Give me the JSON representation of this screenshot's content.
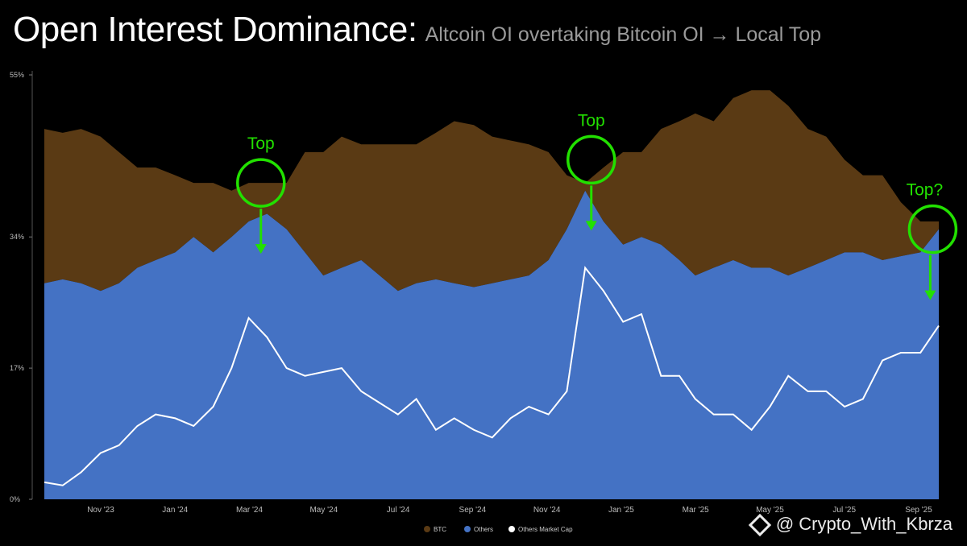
{
  "title": "Open Interest Dominance:",
  "subtitle": "Altcoin OI overtaking Bitcoin OI → Local Top",
  "watermark": "@ Crypto_With_Kbrza",
  "colors": {
    "btc": "#5a3a14",
    "others": "#4472c4",
    "others_mcap": "#ffffff",
    "annotation": "#22e000",
    "background": "#000000"
  },
  "chart_data": {
    "type": "area",
    "y_ticks": [
      "0%",
      "17%",
      "34%",
      "55%"
    ],
    "y_tick_values": [
      0,
      17,
      34,
      55
    ],
    "ylim": [
      0,
      55
    ],
    "x_ticks": [
      "Nov '23",
      "Jan '24",
      "Mar '24",
      "May '24",
      "Jul '24",
      "Sep '24",
      "Nov '24",
      "Jan '25",
      "Mar '25",
      "May '25",
      "Jul '25",
      "Sep '25"
    ],
    "legend": [
      "BTC",
      "Others",
      "Others Market Cap"
    ],
    "legend_position": "bottom-center",
    "grid": false,
    "annotations": [
      {
        "text": "Top",
        "x": "2024-03-15",
        "y": 41
      },
      {
        "text": "Top",
        "x": "2024-12-10",
        "y": 44
      },
      {
        "text": "Top?",
        "x": "2025-09-15",
        "y": 35
      }
    ],
    "series": [
      {
        "name": "Others",
        "x": [
          "2023-09-20",
          "2023-10-05",
          "2023-10-20",
          "2023-11-05",
          "2023-11-20",
          "2023-12-05",
          "2023-12-20",
          "2024-01-05",
          "2024-01-20",
          "2024-02-05",
          "2024-02-20",
          "2024-03-05",
          "2024-03-20",
          "2024-04-05",
          "2024-04-20",
          "2024-05-05",
          "2024-05-20",
          "2024-06-05",
          "2024-06-20",
          "2024-07-05",
          "2024-07-20",
          "2024-08-05",
          "2024-08-20",
          "2024-09-05",
          "2024-09-20",
          "2024-10-05",
          "2024-10-20",
          "2024-11-05",
          "2024-11-20",
          "2024-12-05",
          "2024-12-20",
          "2025-01-05",
          "2025-01-20",
          "2025-02-05",
          "2025-02-20",
          "2025-03-05",
          "2025-03-20",
          "2025-04-05",
          "2025-04-20",
          "2025-05-05",
          "2025-05-20",
          "2025-06-05",
          "2025-06-20",
          "2025-07-05",
          "2025-07-20",
          "2025-08-05",
          "2025-08-20",
          "2025-09-05",
          "2025-09-20"
        ],
        "values": [
          28,
          28.5,
          28,
          27,
          28,
          30,
          31,
          32,
          34,
          32,
          34,
          36,
          37,
          35,
          32,
          29,
          30,
          31,
          29,
          27,
          28,
          28.5,
          28,
          27.5,
          28,
          28.5,
          29,
          31,
          35,
          40,
          36,
          33,
          34,
          33,
          31,
          29,
          30,
          31,
          30,
          30,
          29,
          30,
          31,
          32,
          32,
          31,
          31.5,
          32,
          35
        ]
      },
      {
        "name": "BTC",
        "x": [
          "2023-09-20",
          "2023-10-05",
          "2023-10-20",
          "2023-11-05",
          "2023-11-20",
          "2023-12-05",
          "2023-12-20",
          "2024-01-05",
          "2024-01-20",
          "2024-02-05",
          "2024-02-20",
          "2024-03-05",
          "2024-03-20",
          "2024-04-05",
          "2024-04-20",
          "2024-05-05",
          "2024-05-20",
          "2024-06-05",
          "2024-06-20",
          "2024-07-05",
          "2024-07-20",
          "2024-08-05",
          "2024-08-20",
          "2024-09-05",
          "2024-09-20",
          "2024-10-05",
          "2024-10-20",
          "2024-11-05",
          "2024-11-20",
          "2024-12-05",
          "2024-12-20",
          "2025-01-05",
          "2025-01-20",
          "2025-02-05",
          "2025-02-20",
          "2025-03-05",
          "2025-03-20",
          "2025-04-05",
          "2025-04-20",
          "2025-05-05",
          "2025-05-20",
          "2025-06-05",
          "2025-06-20",
          "2025-07-05",
          "2025-07-20",
          "2025-08-05",
          "2025-08-20",
          "2025-09-05",
          "2025-09-20"
        ],
        "values": [
          20,
          19,
          20,
          20,
          17,
          13,
          12,
          10,
          7,
          9,
          6,
          5,
          4,
          6,
          13,
          16,
          17,
          15,
          17,
          19,
          18,
          19,
          21,
          21,
          19,
          18,
          17,
          14,
          7,
          1,
          7,
          12,
          11,
          15,
          18,
          21,
          19,
          21,
          23,
          23,
          22,
          18,
          16,
          12,
          10,
          11,
          7,
          4,
          1
        ]
      },
      {
        "name": "Others Market Cap",
        "x": [
          "2023-09-20",
          "2023-10-05",
          "2023-10-20",
          "2023-11-05",
          "2023-11-20",
          "2023-12-05",
          "2023-12-20",
          "2024-01-05",
          "2024-01-20",
          "2024-02-05",
          "2024-02-20",
          "2024-03-05",
          "2024-03-20",
          "2024-04-05",
          "2024-04-20",
          "2024-05-05",
          "2024-05-20",
          "2024-06-05",
          "2024-06-20",
          "2024-07-05",
          "2024-07-20",
          "2024-08-05",
          "2024-08-20",
          "2024-09-05",
          "2024-09-20",
          "2024-10-05",
          "2024-10-20",
          "2024-11-05",
          "2024-11-20",
          "2024-12-05",
          "2024-12-20",
          "2025-01-05",
          "2025-01-20",
          "2025-02-05",
          "2025-02-20",
          "2025-03-05",
          "2025-03-20",
          "2025-04-05",
          "2025-04-20",
          "2025-05-05",
          "2025-05-20",
          "2025-06-05",
          "2025-06-20",
          "2025-07-05",
          "2025-07-20",
          "2025-08-05",
          "2025-08-20",
          "2025-09-05",
          "2025-09-20"
        ],
        "values": [
          2.2,
          1.8,
          3.5,
          6,
          7,
          9.5,
          11,
          10.5,
          9.5,
          12,
          17,
          23.5,
          21,
          17,
          16,
          16.5,
          17,
          14,
          12.5,
          11,
          13,
          9,
          10.5,
          9,
          8,
          10.5,
          12,
          11,
          14,
          30,
          27,
          23,
          24,
          16,
          16,
          13,
          11,
          11,
          9,
          12,
          16,
          14,
          14,
          12,
          13,
          18,
          19,
          19,
          22.5
        ]
      }
    ]
  }
}
